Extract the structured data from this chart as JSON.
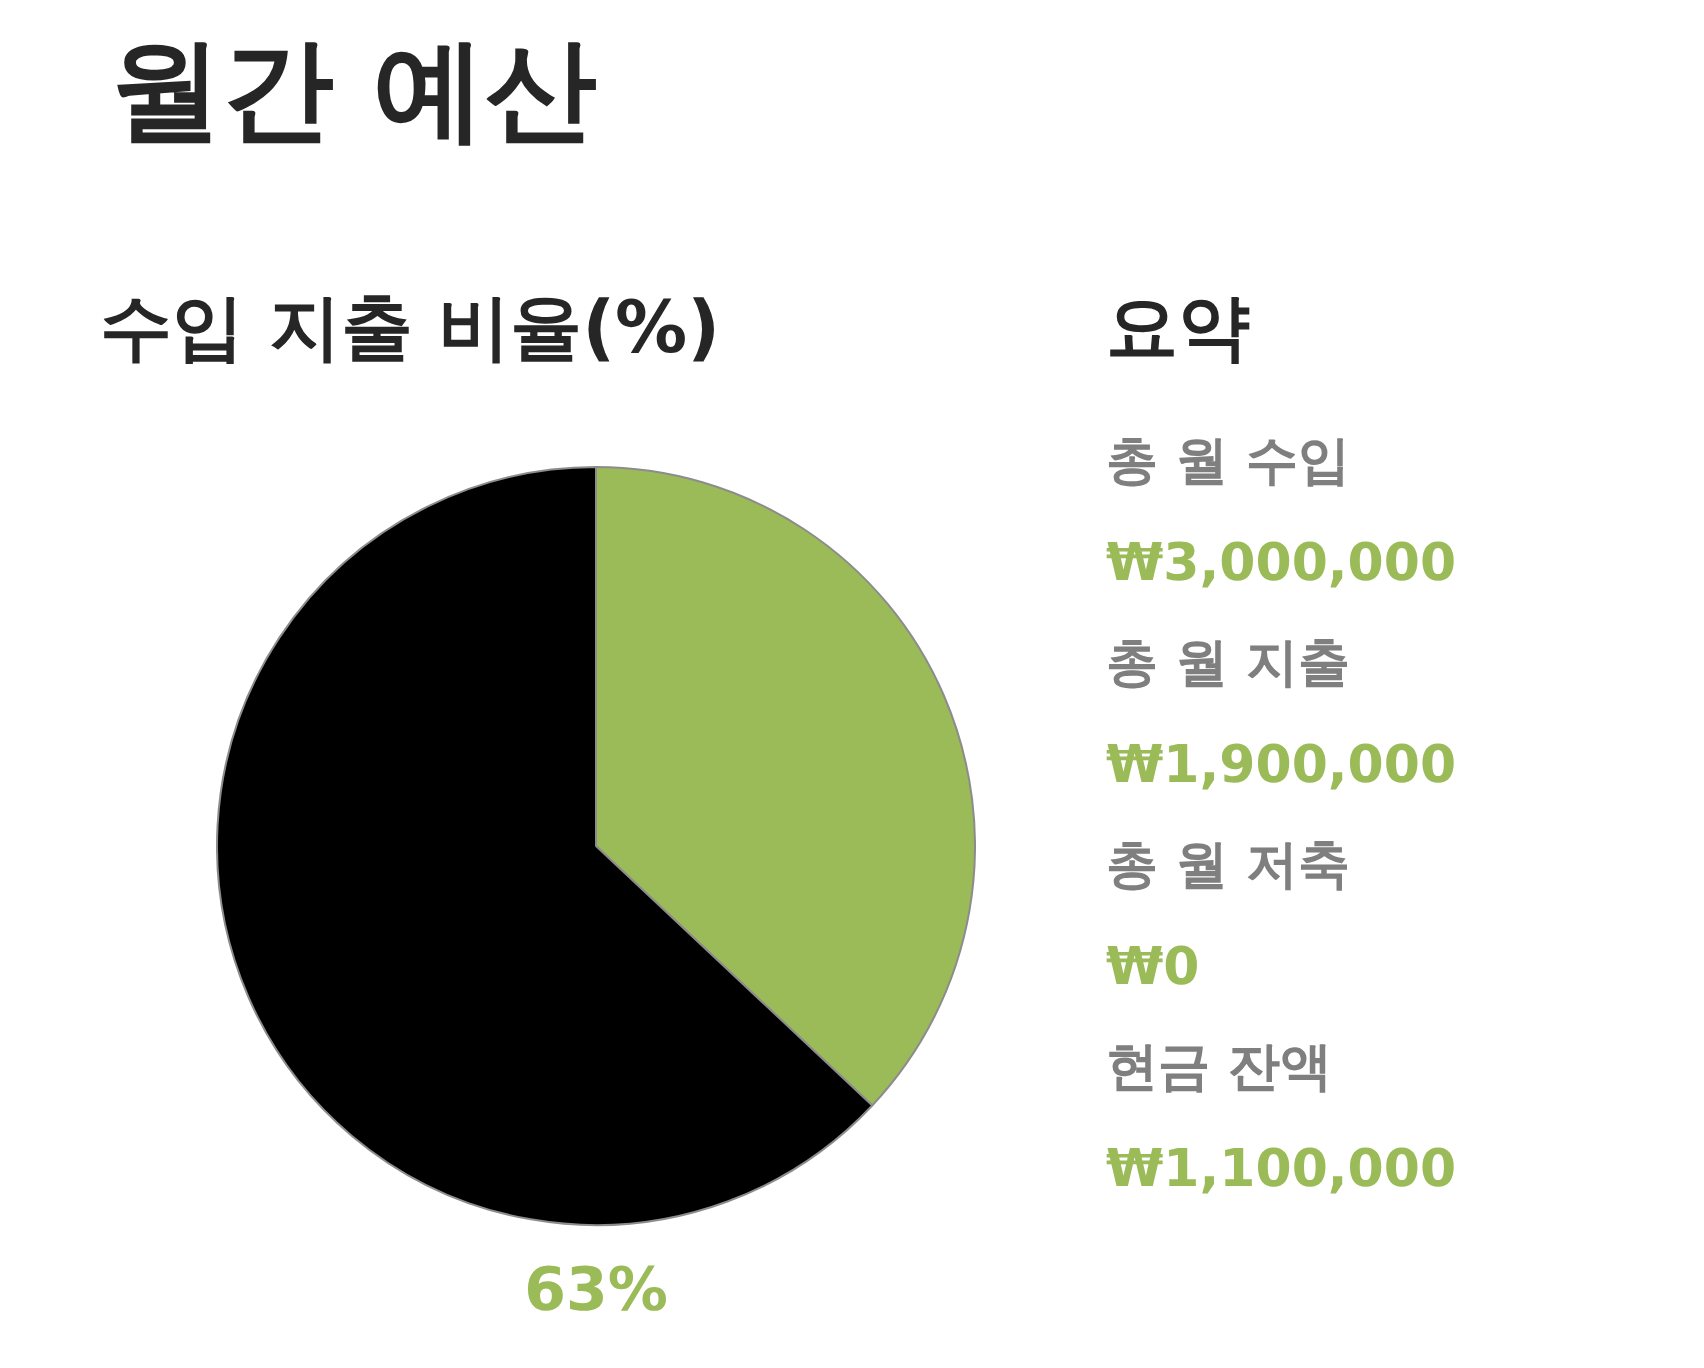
{
  "chart_data": [
    {
      "type": "pie",
      "title": "월간 예산",
      "subtitle": "수입 지출 비율(%)",
      "categories": [
        null,
        null
      ],
      "values": [
        37,
        63
      ],
      "colors": [
        "#9bbb59",
        "#000000"
      ],
      "value_labels": [
        null,
        "63%"
      ]
    },
    {
      "type": "other",
      "title": "요약",
      "annotations": [
        "총 월 수입",
        "₩3,000,000",
        "총 월 지출",
        "₩1,900,000",
        "총 월 저축",
        "₩0",
        "현금 잔액",
        "₩1,100,000"
      ]
    }
  ]
}
